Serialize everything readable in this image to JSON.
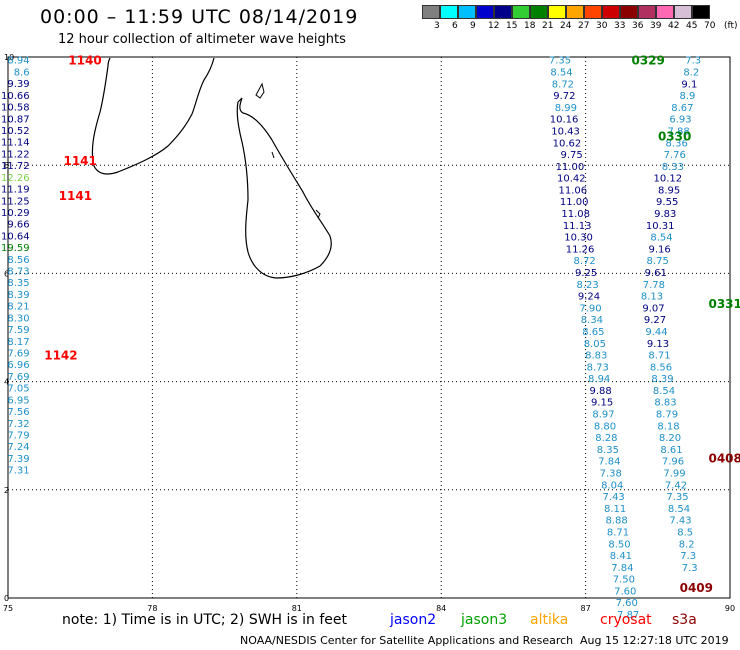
{
  "title": "00:00 – 11:59 UTC 08/14/2019",
  "subtitle": "12 hour collection of altimeter wave heights",
  "legend": {
    "labels": [
      "3",
      "6",
      "9",
      "12",
      "15",
      "18",
      "21",
      "24",
      "27",
      "30",
      "33",
      "36",
      "39",
      "42",
      "45",
      "70",
      "(ft)"
    ],
    "colors": [
      "#808080",
      "#00ffff",
      "#00bfff",
      "#0000cd",
      "#00008b",
      "#32cd32",
      "#008000",
      "#ffff00",
      "#ffa500",
      "#ff4500",
      "#cc0000",
      "#8b0000",
      "#b03060",
      "#ff69b4",
      "#d8bfd8",
      "#000000"
    ]
  },
  "axes": {
    "lon_ticks": [
      "75",
      "78",
      "81",
      "84",
      "87",
      "90"
    ],
    "lat_ticks": [
      "0",
      "2",
      "4",
      "6",
      "8",
      "10"
    ]
  },
  "colors": {
    "cyan": "#1e90c8",
    "navy": "#000080",
    "green": "#008000",
    "red": "#ff0000",
    "darkred": "#8b0000",
    "lightgreen": "#7fd34a"
  },
  "tracks": [
    {
      "lon": 75.45,
      "start_lat": 9.95,
      "step": 0.2165,
      "values": [
        "8.94",
        "8.6",
        "9.39",
        "10.66",
        "10.58",
        "10.87",
        "10.52",
        "11.14",
        "11.22",
        "11.72",
        "12.26",
        "11.19",
        "11.25",
        "10.29",
        "9.66",
        "10.64",
        "19.59",
        "8.56",
        "8.73",
        "8.35",
        "8.39",
        "8.21",
        "8.30",
        "7.59",
        "8.17",
        "7.69",
        "6.96",
        "7.69",
        "7.05",
        "6.95",
        "7.56",
        "7.32",
        "7.79",
        "7.24",
        "7.39",
        "7.31"
      ],
      "colors": [
        "cyan",
        "cyan",
        "navy",
        "navy",
        "navy",
        "navy",
        "navy",
        "navy",
        "navy",
        "navy",
        "lightgreen",
        "navy",
        "navy",
        "navy",
        "navy",
        "navy",
        "green",
        "cyan",
        "cyan",
        "cyan",
        "cyan",
        "cyan",
        "cyan",
        "cyan",
        "cyan",
        "cyan",
        "cyan",
        "cyan",
        "cyan",
        "cyan",
        "cyan",
        "cyan",
        "cyan",
        "cyan",
        "cyan",
        "cyan"
      ]
    },
    {
      "lon": 86.7,
      "start_lat": 9.95,
      "step": 0.218,
      "values": [
        "7.35",
        "8.54",
        "8.72",
        "9.72",
        "8.99",
        "10.16",
        "10.43",
        "10.62",
        "9.75",
        "11.00",
        "10.42",
        "11.06",
        "11.00",
        "11.08",
        "11.13",
        "10.30",
        "11.26",
        "8.72",
        "9.25",
        "8.23",
        "9.24",
        "7.90",
        "8.34",
        "8.65",
        "8.05",
        "8.83",
        "8.73",
        "8.94",
        "9.88",
        "9.15",
        "8.97",
        "8.80",
        "8.28",
        "8.35",
        "7.84",
        "7.38",
        "8.04",
        "7.43",
        "8.11",
        "8.88",
        "8.71",
        "8.50",
        "8.41",
        "7.84",
        "7.50",
        "7.60",
        "7.60",
        "7.87"
      ],
      "colors": [
        "cyan",
        "cyan",
        "cyan",
        "navy",
        "cyan",
        "navy",
        "navy",
        "navy",
        "navy",
        "navy",
        "navy",
        "navy",
        "navy",
        "navy",
        "navy",
        "navy",
        "navy",
        "cyan",
        "navy",
        "cyan",
        "navy",
        "cyan",
        "cyan",
        "cyan",
        "cyan",
        "cyan",
        "cyan",
        "cyan",
        "navy",
        "navy",
        "cyan",
        "cyan",
        "cyan",
        "cyan",
        "cyan",
        "cyan",
        "cyan",
        "cyan",
        "cyan",
        "cyan",
        "cyan",
        "cyan",
        "cyan",
        "cyan",
        "cyan",
        "cyan",
        "cyan",
        "cyan"
      ]
    },
    {
      "lon": 89.4,
      "start_lat": 9.95,
      "step": 0.218,
      "values": [
        "7.3",
        "8.2",
        "9.1",
        "8.9",
        "8.67",
        "6.93",
        "7.88",
        "8.36",
        "7.76",
        "8.33",
        "10.12",
        "8.95",
        "9.55",
        "9.83",
        "10.31",
        "8.54",
        "9.16",
        "8.75",
        "9.61",
        "7.78",
        "8.13",
        "9.07",
        "9.27",
        "9.44",
        "9.13",
        "8.71",
        "8.56",
        "8.39",
        "8.54",
        "8.83",
        "8.79",
        "8.18",
        "8.20",
        "8.61",
        "7.96",
        "7.99",
        "7.42",
        "7.35",
        "8.54",
        "7.43",
        "8.5",
        "8.2",
        "7.3",
        "7.3"
      ],
      "colors": [
        "cyan",
        "cyan",
        "navy",
        "cyan",
        "cyan",
        "cyan",
        "cyan",
        "cyan",
        "cyan",
        "cyan",
        "navy",
        "navy",
        "navy",
        "navy",
        "navy",
        "cyan",
        "navy",
        "cyan",
        "navy",
        "cyan",
        "cyan",
        "navy",
        "navy",
        "cyan",
        "navy",
        "cyan",
        "cyan",
        "cyan",
        "cyan",
        "cyan",
        "cyan",
        "cyan",
        "cyan",
        "cyan",
        "cyan",
        "cyan",
        "cyan",
        "cyan",
        "cyan",
        "cyan",
        "cyan",
        "cyan",
        "cyan",
        "cyan"
      ]
    }
  ],
  "time_labels": [
    {
      "text": "1140",
      "lon": 76.6,
      "lat": 9.95,
      "color": "red"
    },
    {
      "text": "1141",
      "lon": 76.5,
      "lat": 8.1,
      "color": "red"
    },
    {
      "text": "1141",
      "lon": 76.4,
      "lat": 7.45,
      "color": "red"
    },
    {
      "text": "1142",
      "lon": 76.1,
      "lat": 4.5,
      "color": "red"
    },
    {
      "text": "0329",
      "lon": 88.3,
      "lat": 9.95,
      "color": "green"
    },
    {
      "text": "0330",
      "lon": 88.85,
      "lat": 8.55,
      "color": "green"
    },
    {
      "text": "0331",
      "lon": 89.9,
      "lat": 5.45,
      "color": "green"
    },
    {
      "text": "0408",
      "lon": 89.9,
      "lat": 2.6,
      "color": "darkred"
    },
    {
      "text": "0409",
      "lon": 89.3,
      "lat": 0.2,
      "color": "darkred"
    },
    {
      "text": "04",
      "lon": 90.5,
      "lat": 6.1,
      "color": "darkred"
    },
    {
      "text": "0.",
      "lon": 90.55,
      "lat": 2.6,
      "color": "green"
    }
  ],
  "notes": {
    "text": "note:  1) Time is in UTC;  2) SWH is in feet",
    "jason2": "jason2",
    "jason3": "jason3",
    "altika": "altika",
    "cryosat": "cryosat",
    "s3a": "s3a",
    "colors": {
      "jason2": "#0000ff",
      "jason3": "#00a000",
      "altika": "#ffa500",
      "cryosat": "#ff0000",
      "s3a": "#8b0000"
    }
  },
  "credit": "NOAA/NESDIS Center for Satellite Applications and Research",
  "timestamp": "Aug 15 12:27:18 UTC 2019"
}
